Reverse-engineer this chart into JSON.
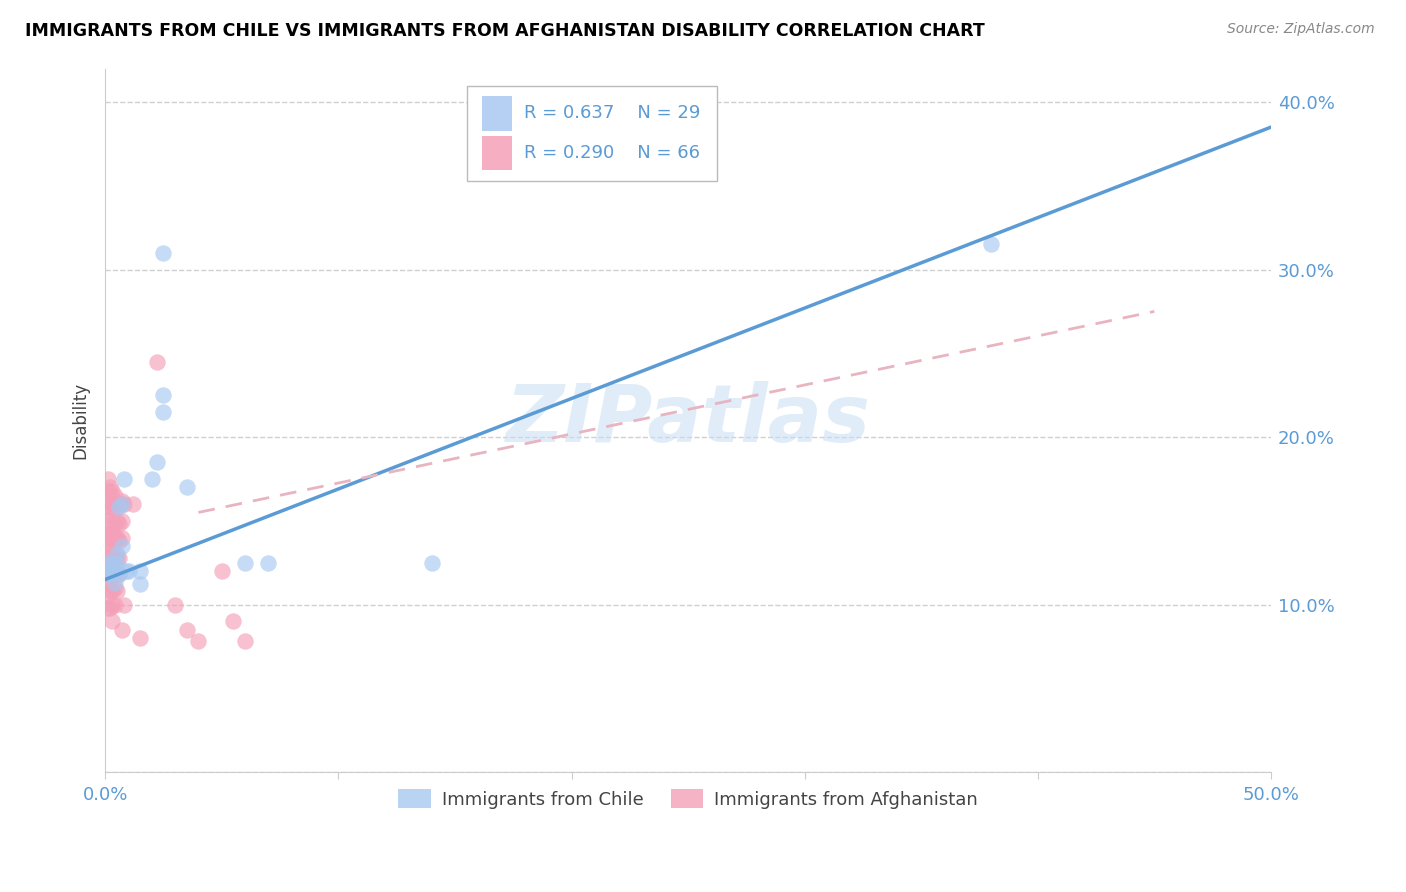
{
  "title": "IMMIGRANTS FROM CHILE VS IMMIGRANTS FROM AFGHANISTAN DISABILITY CORRELATION CHART",
  "source": "Source: ZipAtlas.com",
  "ylabel": "Disability",
  "xlim": [
    0.0,
    0.5
  ],
  "ylim": [
    0.0,
    0.42
  ],
  "xticks": [
    0.0,
    0.1,
    0.2,
    0.3,
    0.4,
    0.5
  ],
  "yticks": [
    0.0,
    0.1,
    0.2,
    0.3,
    0.4
  ],
  "ytick_labels_right": [
    "",
    "10.0%",
    "20.0%",
    "30.0%",
    "40.0%"
  ],
  "xtick_labels": [
    "0.0%",
    "",
    "",
    "",
    "",
    "50.0%"
  ],
  "chile_color": "#A8C8F0",
  "afghanistan_color": "#F4A0B8",
  "chile_line_color": "#5B9BD5",
  "afghanistan_line_color": "#E8B4C0",
  "chile_R": 0.637,
  "chile_N": 29,
  "afghanistan_R": 0.29,
  "afghanistan_N": 66,
  "watermark": "ZIPatlas",
  "chile_line": [
    0.0,
    0.115,
    0.5,
    0.385
  ],
  "afghanistan_line": [
    0.04,
    0.155,
    0.45,
    0.275
  ],
  "chile_points": [
    [
      0.001,
      0.12
    ],
    [
      0.001,
      0.125
    ],
    [
      0.002,
      0.118
    ],
    [
      0.002,
      0.12
    ],
    [
      0.003,
      0.125
    ],
    [
      0.003,
      0.122
    ],
    [
      0.004,
      0.113
    ],
    [
      0.004,
      0.12
    ],
    [
      0.005,
      0.13
    ],
    [
      0.005,
      0.125
    ],
    [
      0.006,
      0.118
    ],
    [
      0.006,
      0.158
    ],
    [
      0.007,
      0.16
    ],
    [
      0.007,
      0.135
    ],
    [
      0.008,
      0.175
    ],
    [
      0.009,
      0.12
    ],
    [
      0.01,
      0.12
    ],
    [
      0.015,
      0.12
    ],
    [
      0.015,
      0.112
    ],
    [
      0.02,
      0.175
    ],
    [
      0.022,
      0.185
    ],
    [
      0.025,
      0.225
    ],
    [
      0.025,
      0.215
    ],
    [
      0.035,
      0.17
    ],
    [
      0.06,
      0.125
    ],
    [
      0.07,
      0.125
    ],
    [
      0.14,
      0.125
    ],
    [
      0.38,
      0.315
    ],
    [
      0.025,
      0.31
    ]
  ],
  "afghanistan_points": [
    [
      0.001,
      0.125
    ],
    [
      0.001,
      0.175
    ],
    [
      0.001,
      0.168
    ],
    [
      0.001,
      0.162
    ],
    [
      0.001,
      0.158
    ],
    [
      0.001,
      0.15
    ],
    [
      0.001,
      0.142
    ],
    [
      0.001,
      0.135
    ],
    [
      0.001,
      0.128
    ],
    [
      0.001,
      0.118
    ],
    [
      0.001,
      0.112
    ],
    [
      0.001,
      0.105
    ],
    [
      0.001,
      0.098
    ],
    [
      0.002,
      0.17
    ],
    [
      0.002,
      0.165
    ],
    [
      0.002,
      0.158
    ],
    [
      0.002,
      0.148
    ],
    [
      0.002,
      0.14
    ],
    [
      0.002,
      0.132
    ],
    [
      0.002,
      0.122
    ],
    [
      0.002,
      0.115
    ],
    [
      0.002,
      0.108
    ],
    [
      0.002,
      0.098
    ],
    [
      0.003,
      0.168
    ],
    [
      0.003,
      0.16
    ],
    [
      0.003,
      0.152
    ],
    [
      0.003,
      0.143
    ],
    [
      0.003,
      0.135
    ],
    [
      0.003,
      0.127
    ],
    [
      0.003,
      0.118
    ],
    [
      0.003,
      0.108
    ],
    [
      0.003,
      0.1
    ],
    [
      0.003,
      0.09
    ],
    [
      0.004,
      0.165
    ],
    [
      0.004,
      0.157
    ],
    [
      0.004,
      0.148
    ],
    [
      0.004,
      0.14
    ],
    [
      0.004,
      0.13
    ],
    [
      0.004,
      0.12
    ],
    [
      0.004,
      0.11
    ],
    [
      0.004,
      0.1
    ],
    [
      0.005,
      0.16
    ],
    [
      0.005,
      0.15
    ],
    [
      0.005,
      0.14
    ],
    [
      0.005,
      0.128
    ],
    [
      0.005,
      0.118
    ],
    [
      0.005,
      0.108
    ],
    [
      0.006,
      0.16
    ],
    [
      0.006,
      0.148
    ],
    [
      0.006,
      0.138
    ],
    [
      0.006,
      0.128
    ],
    [
      0.006,
      0.118
    ],
    [
      0.007,
      0.162
    ],
    [
      0.007,
      0.15
    ],
    [
      0.007,
      0.14
    ],
    [
      0.007,
      0.085
    ],
    [
      0.008,
      0.16
    ],
    [
      0.008,
      0.1
    ],
    [
      0.012,
      0.16
    ],
    [
      0.015,
      0.08
    ],
    [
      0.022,
      0.245
    ],
    [
      0.03,
      0.1
    ],
    [
      0.035,
      0.085
    ],
    [
      0.04,
      0.078
    ],
    [
      0.05,
      0.12
    ],
    [
      0.055,
      0.09
    ],
    [
      0.06,
      0.078
    ]
  ]
}
